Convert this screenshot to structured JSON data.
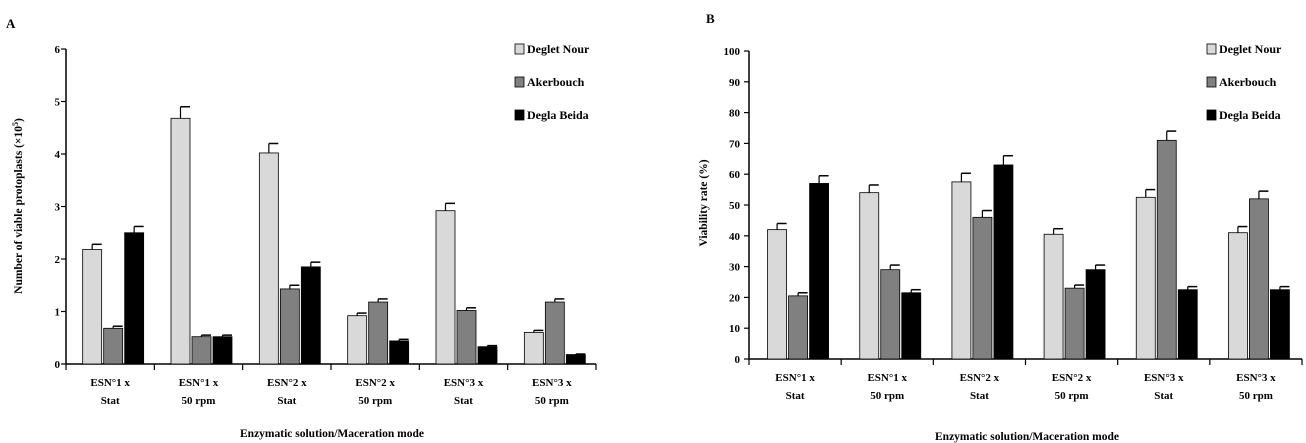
{
  "chart_data": [
    {
      "panel": "A",
      "type": "bar",
      "xlabel": "Enzymatic solution/Maceration mode",
      "ylabel": "Number of viable protoplasts (×10",
      "ylabel_sup": "5",
      "ylabel_end": ")",
      "ylim": [
        0,
        6
      ],
      "yticks": [
        0,
        1,
        2,
        3,
        4,
        5,
        6
      ],
      "categories": [
        [
          "ESN°1 x",
          "Stat"
        ],
        [
          "ESN°1 x",
          "50 rpm"
        ],
        [
          "ESN°2 x",
          "Stat"
        ],
        [
          "ESN°2 x",
          "50 rpm"
        ],
        [
          "ESN°3 x",
          "Stat"
        ],
        [
          "ESN°3 x",
          "50 rpm"
        ]
      ],
      "series": [
        {
          "name": "Deglet Nour",
          "color": "#d9d9d9",
          "values": [
            2.18,
            4.68,
            4.02,
            0.92,
            2.92,
            0.6
          ],
          "errors": [
            0.1,
            0.22,
            0.18,
            0.05,
            0.14,
            0.04
          ]
        },
        {
          "name": "Akerbouch",
          "color": "#808080",
          "values": [
            0.68,
            0.52,
            1.43,
            1.18,
            1.02,
            1.18
          ],
          "errors": [
            0.04,
            0.03,
            0.07,
            0.06,
            0.05,
            0.06
          ]
        },
        {
          "name": "Degla Beida",
          "color": "#000000",
          "values": [
            2.5,
            0.52,
            1.85,
            0.44,
            0.33,
            0.18
          ],
          "errors": [
            0.12,
            0.03,
            0.09,
            0.03,
            0.02,
            0.01
          ]
        }
      ],
      "legend_position": "top-right",
      "grid": false
    },
    {
      "panel": "B",
      "type": "bar",
      "xlabel": "Enzymatic solution/Maceration mode",
      "ylabel": "Viability rate (%)",
      "ylim": [
        0,
        100
      ],
      "yticks": [
        0,
        10,
        20,
        30,
        40,
        50,
        60,
        70,
        80,
        90,
        100
      ],
      "categories": [
        [
          "ESN°1 x",
          "Stat"
        ],
        [
          "ESN°1 x",
          "50 rpm"
        ],
        [
          "ESN°2 x",
          "Stat"
        ],
        [
          "ESN°2 x",
          "50 rpm"
        ],
        [
          "ESN°3 x",
          "Stat"
        ],
        [
          "ESN°3 x",
          "50 rpm"
        ]
      ],
      "series": [
        {
          "name": "Deglet Nour",
          "color": "#d9d9d9",
          "values": [
            42,
            54,
            57.5,
            40.5,
            52.5,
            41
          ],
          "errors": [
            2.0,
            2.5,
            2.8,
            1.8,
            2.5,
            2.0
          ]
        },
        {
          "name": "Akerbouch",
          "color": "#808080",
          "values": [
            20.5,
            29,
            46,
            23,
            71,
            52
          ],
          "errors": [
            1.0,
            1.5,
            2.2,
            1.0,
            3.0,
            2.5
          ]
        },
        {
          "name": "Degla Beida",
          "color": "#000000",
          "values": [
            57,
            21.5,
            63,
            29,
            22.5,
            22.5
          ],
          "errors": [
            2.5,
            1.0,
            3.0,
            1.5,
            1.0,
            1.0
          ]
        }
      ],
      "legend_position": "top-right",
      "grid": false
    }
  ]
}
